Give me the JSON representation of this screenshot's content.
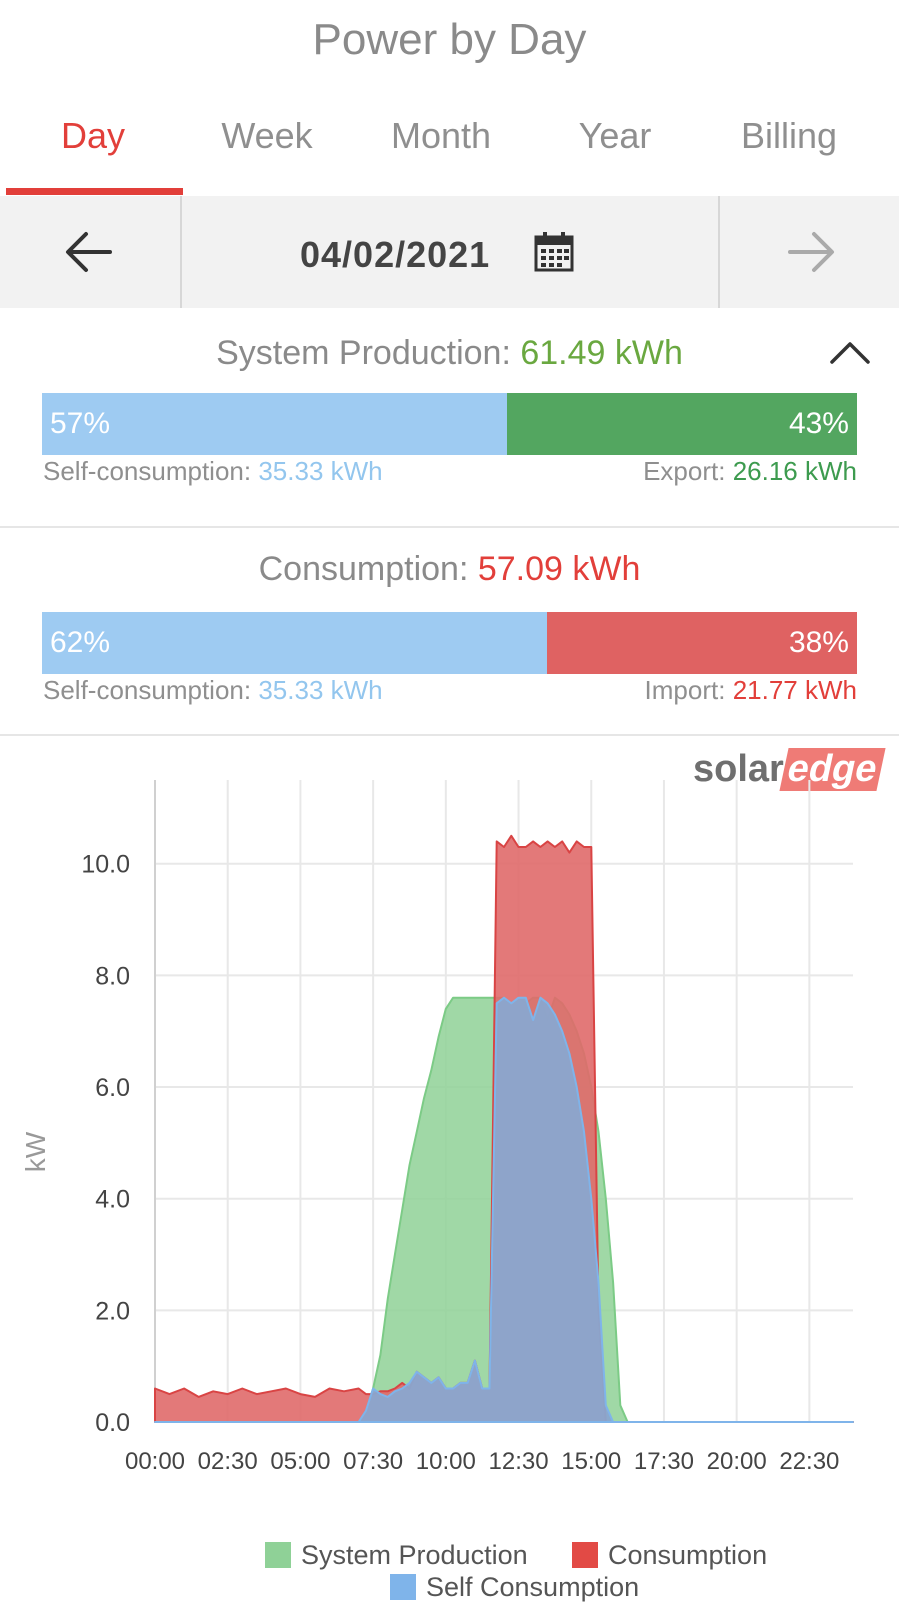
{
  "title": "Power by Day",
  "tabs": [
    {
      "label": "Day",
      "active": true
    },
    {
      "label": "Week",
      "active": false
    },
    {
      "label": "Month",
      "active": false
    },
    {
      "label": "Year",
      "active": false
    },
    {
      "label": "Billing",
      "active": false
    }
  ],
  "date_nav": {
    "date": "04/02/2021",
    "prev_icon": "arrow-left-icon",
    "next_icon": "arrow-right-icon",
    "calendar_icon": "calendar-icon"
  },
  "production": {
    "label": "System Production:",
    "value": "61.49 kWh",
    "self_pct": "57%",
    "export_pct": "43%",
    "self_label": "Self-consumption:",
    "self_value": "35.33 kWh",
    "export_label": "Export:",
    "export_value": "26.16 kWh",
    "self_fraction": 0.57
  },
  "consumption": {
    "label": "Consumption:",
    "value": "57.09 kWh",
    "self_pct": "62%",
    "import_pct": "38%",
    "self_label": "Self-consumption:",
    "self_value": "35.33 kWh",
    "import_label": "Import:",
    "import_value": "21.77 kWh",
    "self_fraction": 0.62
  },
  "logo": {
    "part1": "solar",
    "part2": "edge"
  },
  "colors": {
    "accent": "#e23f3a",
    "self_blue": "#9ecbf2",
    "export_green": "#53a660",
    "import_red": "#df6262",
    "text_blue": "#93c6ee",
    "text_green": "#3d9b4f",
    "text_red": "#e23f3a",
    "production_fill": "#8fd197",
    "consumption_fill": "#e06a6a",
    "self_fill": "#8aa6cf"
  },
  "chart_data": {
    "type": "area",
    "ylabel": "kW",
    "ylim": [
      0,
      11.5
    ],
    "yticks": [
      "0.0",
      "2.0",
      "4.0",
      "6.0",
      "8.0",
      "10.0"
    ],
    "xticks": [
      "00:00",
      "02:30",
      "05:00",
      "07:30",
      "10:00",
      "12:30",
      "15:00",
      "17:30",
      "20:00",
      "22:30"
    ],
    "xlim_hours": [
      0,
      24
    ],
    "grid": true,
    "legend_position": "bottom",
    "x": [
      0,
      0.5,
      1,
      1.5,
      2,
      2.5,
      3,
      3.5,
      4,
      4.5,
      5,
      5.5,
      6,
      6.5,
      7,
      7.25,
      7.5,
      7.75,
      8,
      8.25,
      8.5,
      8.75,
      9,
      9.25,
      9.5,
      9.75,
      10,
      10.25,
      10.5,
      10.75,
      11,
      11.25,
      11.5,
      11.75,
      12,
      12.25,
      12.5,
      12.75,
      13,
      13.25,
      13.5,
      13.75,
      14,
      14.25,
      14.5,
      14.75,
      15,
      15.25,
      15.5,
      15.75,
      16,
      16.25,
      16.5,
      16.75,
      17,
      17.25,
      17.5,
      17.75,
      18,
      18.5,
      19,
      20,
      21,
      22,
      23,
      24
    ],
    "series": [
      {
        "name": "System Production",
        "color": "#8fd197",
        "values": [
          0,
          0,
          0,
          0,
          0,
          0,
          0,
          0,
          0,
          0,
          0,
          0,
          0,
          0,
          0,
          0.2,
          0.6,
          1.2,
          2.2,
          3.0,
          3.8,
          4.6,
          5.2,
          5.8,
          6.3,
          6.9,
          7.4,
          7.6,
          7.6,
          7.6,
          7.6,
          7.6,
          7.6,
          7.6,
          7.6,
          7.5,
          7.6,
          7.5,
          7.6,
          7.6,
          7.2,
          7.6,
          7.5,
          7.3,
          7.0,
          6.6,
          6.0,
          5.2,
          4.0,
          2.5,
          0.3,
          0,
          0,
          0,
          0,
          0,
          0,
          0,
          0,
          0,
          0,
          0,
          0,
          0,
          0,
          0
        ]
      },
      {
        "name": "Consumption",
        "color": "#e06a6a",
        "values": [
          0.6,
          0.5,
          0.6,
          0.45,
          0.55,
          0.5,
          0.6,
          0.5,
          0.55,
          0.6,
          0.5,
          0.45,
          0.6,
          0.55,
          0.6,
          0.5,
          0.5,
          0.55,
          0.55,
          0.6,
          0.7,
          0.6,
          0.9,
          0.8,
          0.7,
          0.8,
          0.6,
          0.6,
          0.7,
          0.7,
          1.1,
          0.6,
          0.6,
          10.4,
          10.3,
          10.5,
          10.3,
          10.3,
          10.4,
          10.3,
          10.4,
          10.3,
          10.4,
          10.2,
          10.4,
          10.3,
          10.3,
          2.0,
          0,
          0,
          0,
          0,
          0,
          0,
          0,
          0,
          0,
          0,
          0,
          0,
          0,
          0,
          0,
          0,
          0,
          0
        ]
      },
      {
        "name": "Self Consumption",
        "color": "#8aa6cf",
        "values": [
          0,
          0,
          0,
          0,
          0,
          0,
          0,
          0,
          0,
          0,
          0,
          0,
          0,
          0,
          0,
          0.2,
          0.6,
          0.5,
          0.45,
          0.55,
          0.6,
          0.7,
          0.9,
          0.8,
          0.7,
          0.8,
          0.6,
          0.6,
          0.7,
          0.7,
          1.1,
          0.6,
          0.6,
          7.5,
          7.6,
          7.5,
          7.6,
          7.6,
          7.2,
          7.6,
          7.5,
          7.3,
          7.0,
          6.6,
          6.0,
          5.2,
          4.0,
          2.5,
          0.3,
          0,
          0,
          0,
          0,
          0,
          0,
          0,
          0,
          0,
          0,
          0,
          0,
          0,
          0,
          0,
          0,
          0
        ]
      }
    ]
  }
}
